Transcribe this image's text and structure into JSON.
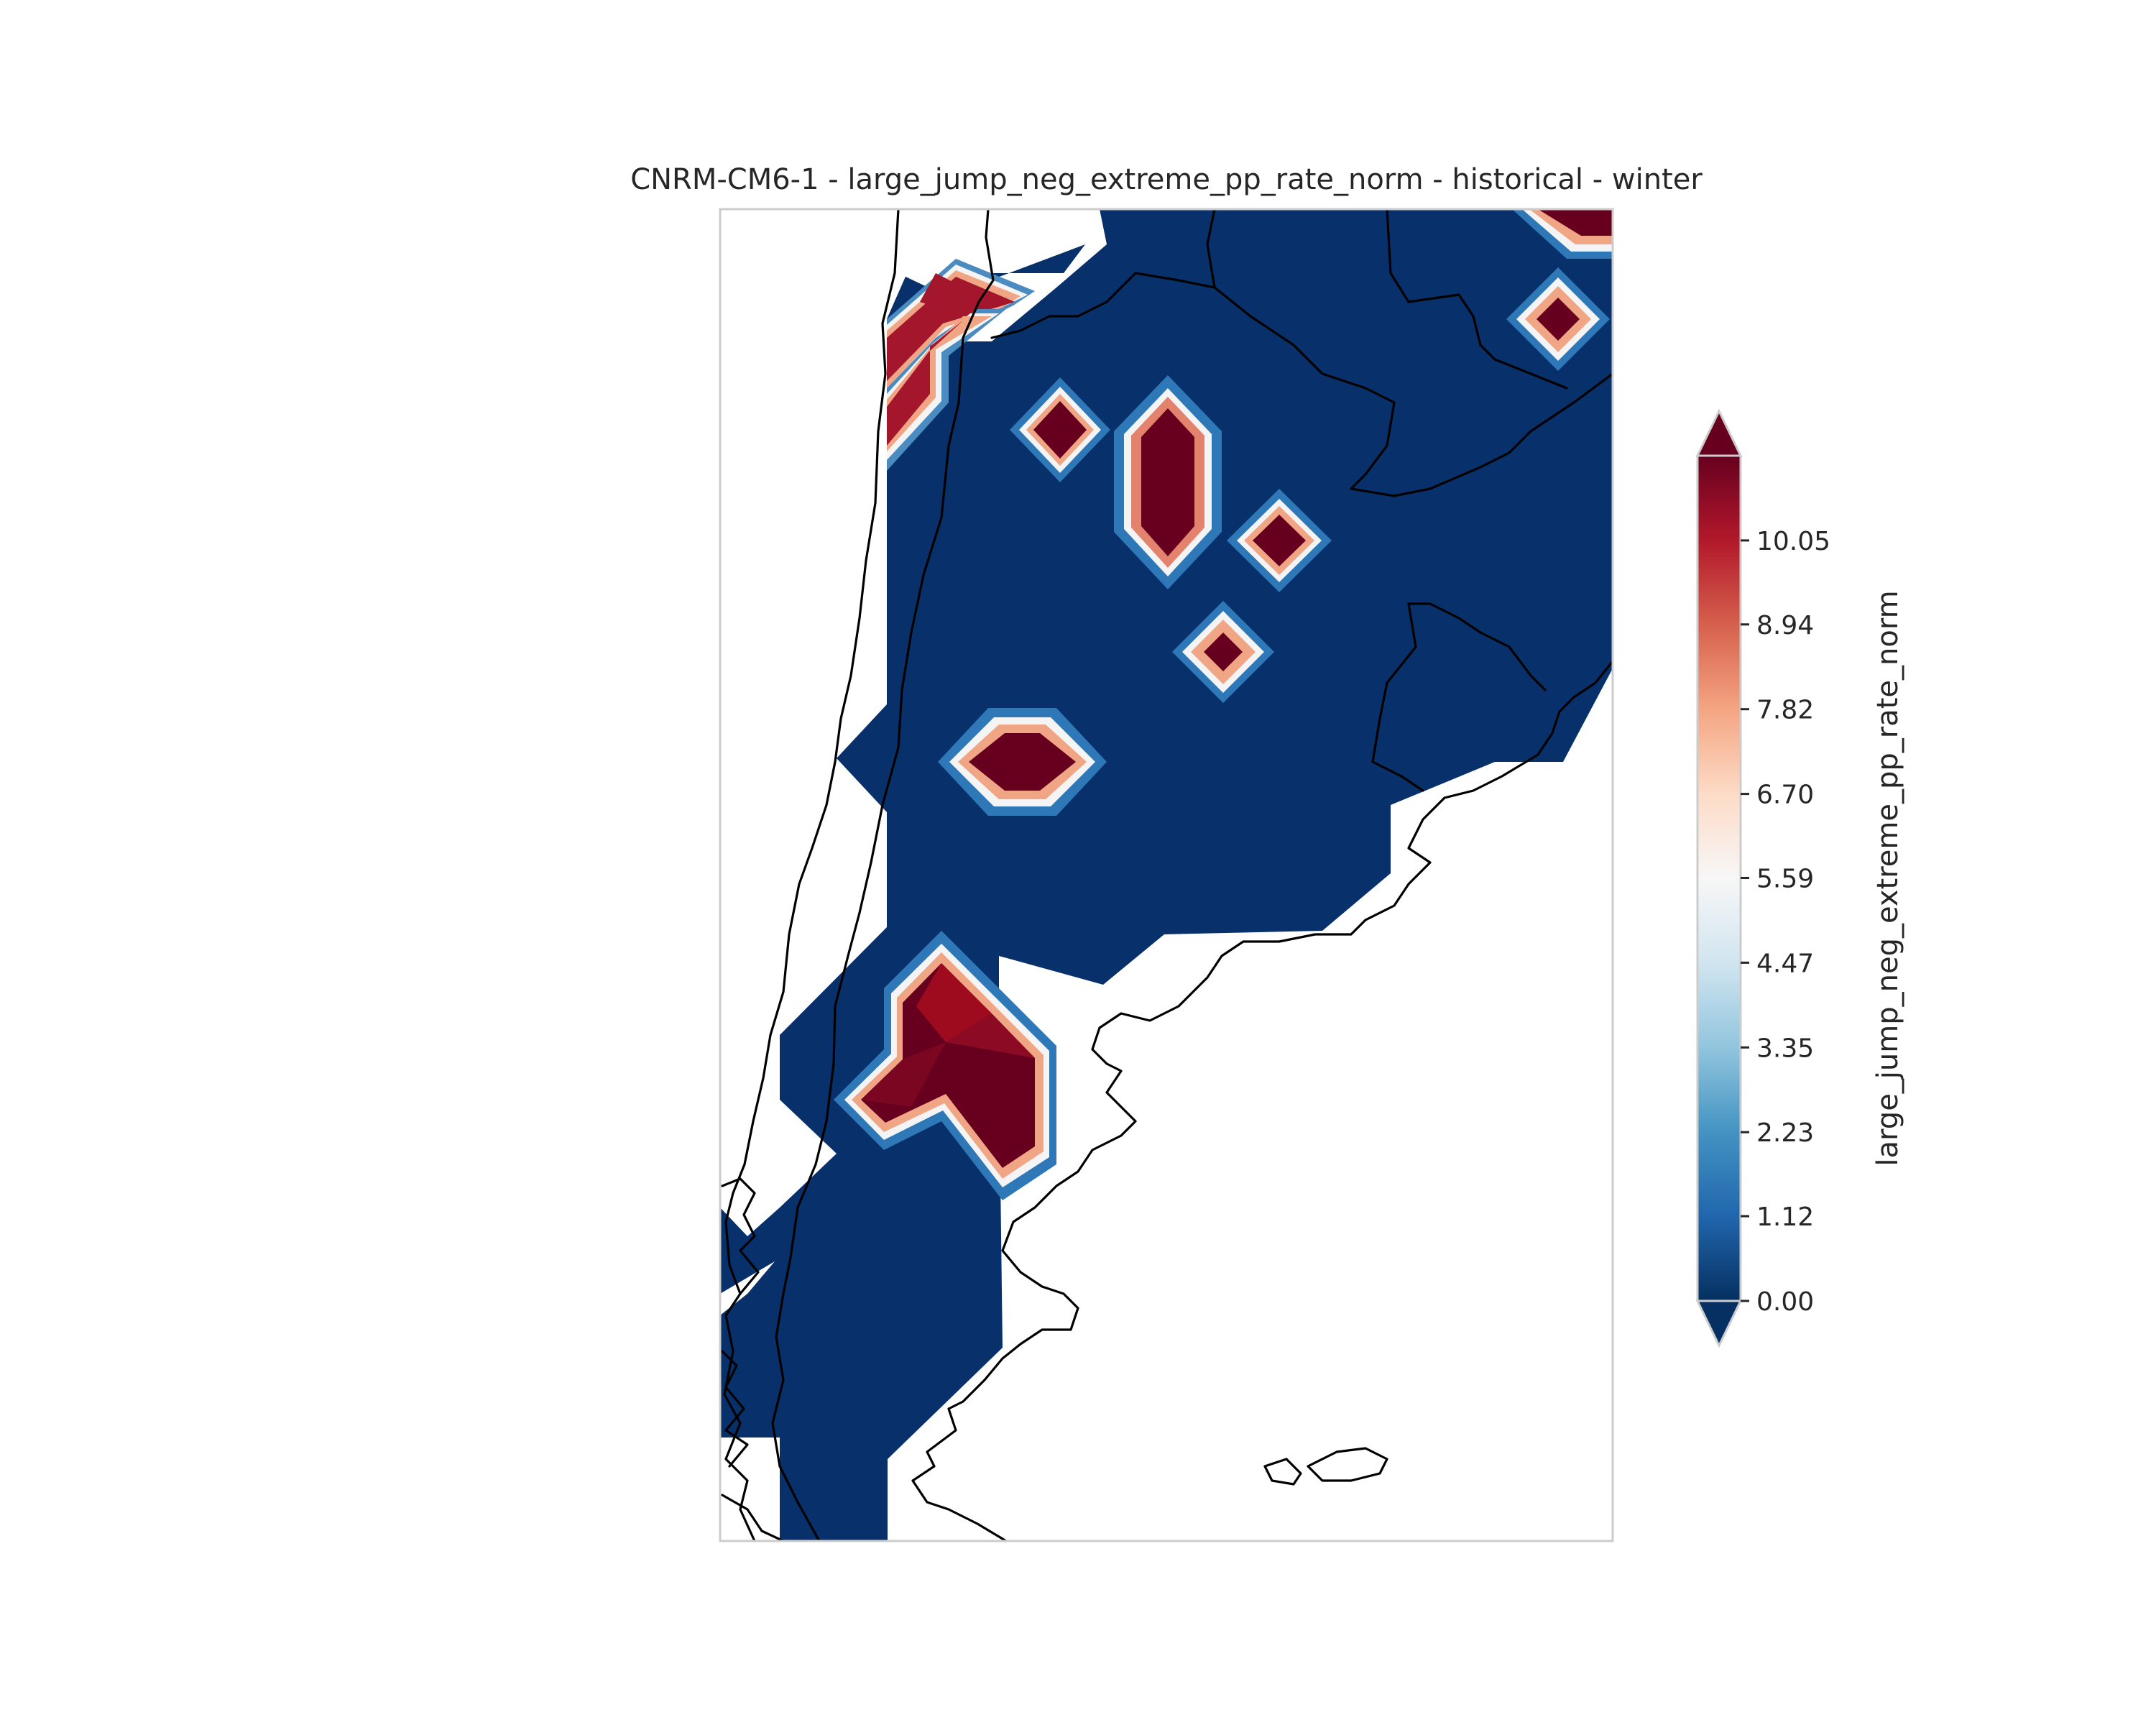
{
  "title": "CNRM-CM6-1 - large_jump_neg_extreme_pp_rate_norm - historical - winter",
  "colorbar": {
    "label": "large_jump_neg_extreme_pp_rate_norm",
    "ticks": [
      "0.00",
      "1.12",
      "2.23",
      "3.35",
      "4.47",
      "5.59",
      "6.70",
      "7.82",
      "8.94",
      "10.05"
    ],
    "min": 0.0,
    "max": 11.17,
    "extend": "both",
    "colormap": [
      "#053061",
      "#2166ac",
      "#4393c3",
      "#92c5de",
      "#d1e5f0",
      "#f7f7f7",
      "#fddbc7",
      "#f4a582",
      "#d6604d",
      "#b2182b",
      "#67001f"
    ]
  },
  "colors": {
    "low": "#08306b",
    "high": "#67001f",
    "hot": "#9e0b1e",
    "axes_frame": "#cccccc",
    "coastline": "#000000"
  }
}
